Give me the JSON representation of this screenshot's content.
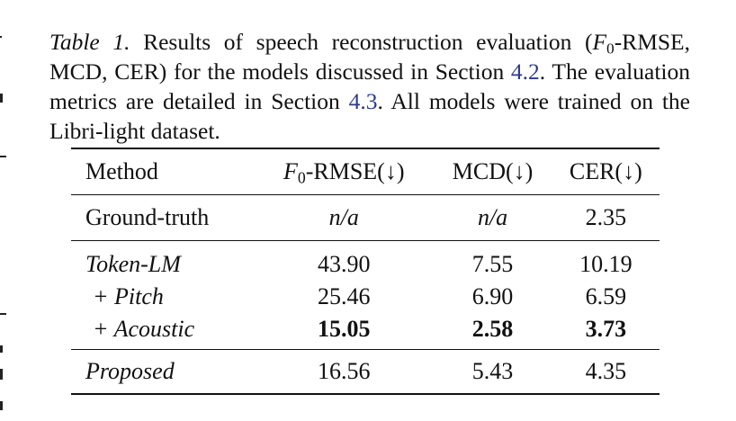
{
  "caption": {
    "label": "Table 1.",
    "part1": " Results of speech reconstruction evaluation (",
    "f0_letter": "F",
    "f0_sub": "0",
    "part2": "-RMSE, MCD, CER) for the models discussed in Section ",
    "ref1": "4.2",
    "part3": ". The evaluation metrics are detailed in Section ",
    "ref2": "4.3",
    "part4": ". All models were trained on the Libri-light dataset."
  },
  "table": {
    "headers": {
      "method": "Method",
      "f0_letter": "F",
      "f0_sub": "0",
      "f0_rest": "-RMSE(↓)",
      "mcd": "MCD(↓)",
      "cer": "CER(↓)"
    },
    "rows": [
      {
        "method": "Ground-truth",
        "f0": "n/a",
        "mcd": "n/a",
        "cer": "2.35"
      },
      {
        "method": "Token-LM",
        "f0": "43.90",
        "mcd": "7.55",
        "cer": "10.19"
      },
      {
        "method": "+ Pitch",
        "f0": "25.46",
        "mcd": "6.90",
        "cer": "6.59"
      },
      {
        "method": "+ Acoustic",
        "f0": "15.05",
        "mcd": "2.58",
        "cer": "3.73"
      },
      {
        "method": "Proposed",
        "f0": "16.56",
        "mcd": "5.43",
        "cer": "4.35"
      }
    ]
  }
}
